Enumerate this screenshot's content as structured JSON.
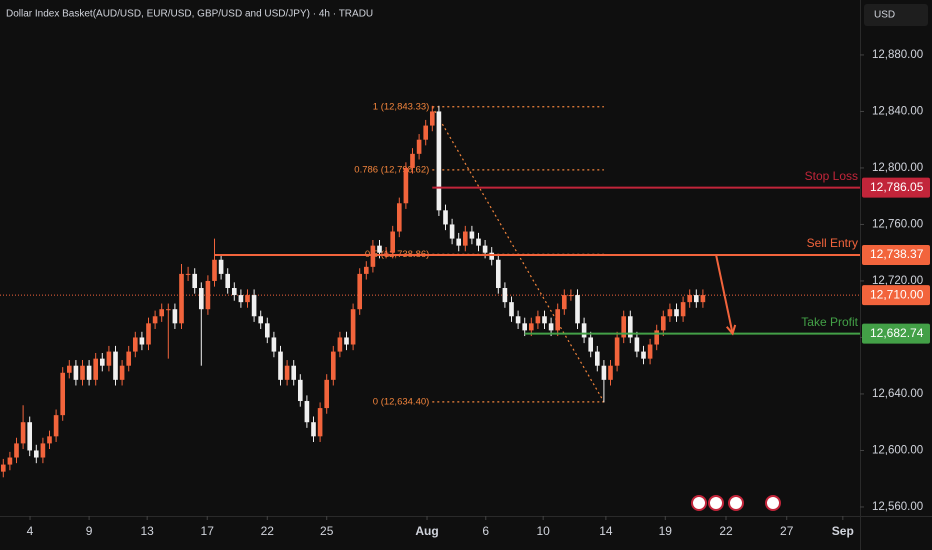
{
  "chart_data": {
    "type": "candlestick",
    "title": "Dollar Index Basket(AUD/USD, EUR/USD, GBP/USD and USD/JPY) · 4h · TRADU",
    "currency": "USD",
    "up_color": "#f2643c",
    "down_color": "#f0f0f0",
    "xlim": [
      -0.5,
      129.5
    ],
    "xticks": [
      {
        "value": 4.05,
        "label": "4"
      },
      {
        "value": 13,
        "label": "9"
      },
      {
        "value": 21.8,
        "label": "13"
      },
      {
        "value": 30.9,
        "label": "17"
      },
      {
        "value": 40,
        "label": "22"
      },
      {
        "value": 49,
        "label": "25"
      },
      {
        "value": 64.2,
        "label": "Aug"
      },
      {
        "value": 73.1,
        "label": "6"
      },
      {
        "value": 81.8,
        "label": "10"
      },
      {
        "value": 91.3,
        "label": "14"
      },
      {
        "value": 100.3,
        "label": "19"
      },
      {
        "value": 109.5,
        "label": "22"
      },
      {
        "value": 118.7,
        "label": "27"
      },
      {
        "value": 127.2,
        "label": "Sep"
      }
    ],
    "ylim": [
      12553.6,
      12918.9
    ],
    "yticks": [
      {
        "value": 12560,
        "label": "12,560.00"
      },
      {
        "value": 12600,
        "label": "12,600.00"
      },
      {
        "value": 12640,
        "label": "12,640.00"
      },
      {
        "value": 12680,
        "label": "12,680.00"
      },
      {
        "value": 12720,
        "label": "12,720.00"
      },
      {
        "value": 12760,
        "label": "12,760.00"
      },
      {
        "value": 12800,
        "label": "12,800.00"
      },
      {
        "value": 12840,
        "label": "12,840.00"
      },
      {
        "value": 12880,
        "label": "12,880.00"
      }
    ],
    "open": [
      12585,
      12590,
      12595,
      12605,
      12620,
      12600,
      12595,
      12605,
      12610,
      12625,
      12655,
      12660,
      12650,
      12660,
      12650,
      12665,
      12660,
      12670,
      12650,
      12660,
      12670,
      12680,
      12675,
      12690,
      12695,
      12700,
      12700,
      12690,
      12725,
      12725,
      12715,
      12700,
      12720,
      12735,
      12725,
      12715,
      12710,
      12705,
      12710,
      12695,
      12690,
      12680,
      12670,
      12650,
      12660,
      12650,
      12635,
      12620,
      12610,
      12630,
      12650,
      12670,
      12680,
      12675,
      12700,
      12725,
      12730,
      12745,
      12740,
      12740,
      12755,
      12775,
      12800,
      12810,
      12820,
      12830,
      12840,
      12770,
      12760,
      12750,
      12745,
      12755,
      12750,
      12745,
      12740,
      12735,
      12715,
      12705,
      12695,
      12690,
      12685,
      12690,
      12695,
      12690,
      12685,
      12700,
      12710,
      12710,
      12690,
      12680,
      12670,
      12660,
      12650,
      12660,
      12680,
      12695,
      12680,
      12670,
      12665,
      12675,
      12685,
      12695,
      12700,
      12695,
      12705,
      12710,
      12705
    ],
    "high": [
      12594,
      12599,
      12609,
      12632,
      12624,
      12604,
      12609,
      12614,
      12629,
      12659,
      12664,
      12664,
      12664,
      12664,
      12669,
      12669,
      12674,
      12674,
      12664,
      12674,
      12684,
      12684,
      12694,
      12699,
      12704,
      12704,
      12704,
      12732,
      12730,
      12729,
      12719,
      12724,
      12750,
      12739,
      12729,
      12719,
      12714,
      12714,
      12714,
      12699,
      12694,
      12684,
      12674,
      12664,
      12664,
      12654,
      12639,
      12624,
      12634,
      12654,
      12674,
      12684,
      12684,
      12704,
      12729,
      12734,
      12749,
      12749,
      12744,
      12759,
      12779,
      12804,
      12814,
      12824,
      12834,
      12844,
      12844,
      12774,
      12764,
      12754,
      12759,
      12759,
      12754,
      12749,
      12744,
      12739,
      12719,
      12709,
      12699,
      12694,
      12694,
      12699,
      12699,
      12694,
      12704,
      12714,
      12714,
      12714,
      12694,
      12684,
      12674,
      12664,
      12664,
      12684,
      12699,
      12699,
      12684,
      12674,
      12679,
      12689,
      12699,
      12704,
      12704,
      12709,
      12714,
      12714,
      12714
    ],
    "low": [
      12581,
      12586,
      12591,
      12601,
      12596,
      12591,
      12591,
      12601,
      12606,
      12621,
      12651,
      12646,
      12646,
      12646,
      12646,
      12656,
      12656,
      12646,
      12646,
      12656,
      12666,
      12671,
      12671,
      12686,
      12691,
      12665,
      12686,
      12686,
      12720,
      12711,
      12660,
      12696,
      12716,
      12721,
      12711,
      12706,
      12701,
      12701,
      12691,
      12686,
      12676,
      12666,
      12646,
      12646,
      12646,
      12631,
      12616,
      12606,
      12606,
      12626,
      12646,
      12666,
      12671,
      12671,
      12696,
      12721,
      12726,
      12736,
      12736,
      12736,
      12751,
      12771,
      12796,
      12806,
      12816,
      12826,
      12766,
      12756,
      12746,
      12741,
      12741,
      12746,
      12741,
      12736,
      12731,
      12711,
      12701,
      12691,
      12686,
      12681,
      12681,
      12686,
      12686,
      12681,
      12681,
      12696,
      12706,
      12686,
      12676,
      12666,
      12656,
      12634,
      12646,
      12656,
      12676,
      12676,
      12666,
      12661,
      12661,
      12671,
      12681,
      12691,
      12691,
      12691,
      12701,
      12701,
      12701
    ],
    "close": [
      12590,
      12595,
      12605,
      12620,
      12600,
      12595,
      12605,
      12610,
      12625,
      12655,
      12660,
      12650,
      12660,
      12650,
      12665,
      12660,
      12670,
      12650,
      12660,
      12670,
      12680,
      12675,
      12690,
      12695,
      12700,
      12700,
      12690,
      12725,
      12725,
      12715,
      12700,
      12720,
      12735,
      12725,
      12715,
      12710,
      12705,
      12710,
      12695,
      12690,
      12680,
      12670,
      12650,
      12660,
      12650,
      12635,
      12620,
      12610,
      12630,
      12650,
      12670,
      12680,
      12675,
      12700,
      12725,
      12730,
      12745,
      12740,
      12740,
      12755,
      12775,
      12800,
      12810,
      12820,
      12830,
      12840,
      12770,
      12760,
      12750,
      12745,
      12755,
      12750,
      12745,
      12740,
      12735,
      12715,
      12705,
      12695,
      12690,
      12685,
      12690,
      12695,
      12690,
      12685,
      12700,
      12710,
      12710,
      12690,
      12680,
      12670,
      12660,
      12650,
      12660,
      12680,
      12695,
      12680,
      12670,
      12665,
      12675,
      12685,
      12695,
      12700,
      12695,
      12705,
      12710,
      12705,
      12710
    ],
    "levels": [
      {
        "name": "Stop Loss",
        "value": 12786.05,
        "price_label": "12,786.05",
        "color": "#c2253a",
        "from": 65
      },
      {
        "name": "Sell Entry",
        "value": 12738.37,
        "price_label": "12,738.37",
        "color": "#f2643c",
        "from": 32
      },
      {
        "name": "Take Profit",
        "value": 12682.74,
        "price_label": "12,682.74",
        "color": "#43a047",
        "from": 79
      }
    ],
    "last_price": {
      "value": 12710.0,
      "label": "12,710.00",
      "color": "#f2643c"
    },
    "fib": {
      "from": 65,
      "to": 91,
      "color": "#f2843c",
      "levels": [
        {
          "value": 12843.33,
          "label": "1 (12,843.33)"
        },
        {
          "value": 12798.62,
          "label": "0.786 (12,798.62)"
        },
        {
          "value": 12738.86,
          "label": "0.5 (12,738.86)"
        },
        {
          "value": 12634.4,
          "label": "0 (12,634.40)"
        }
      ]
    },
    "arrow": {
      "x": [
        108,
        110.5
      ],
      "y": [
        12738.37,
        12682.74
      ]
    }
  }
}
